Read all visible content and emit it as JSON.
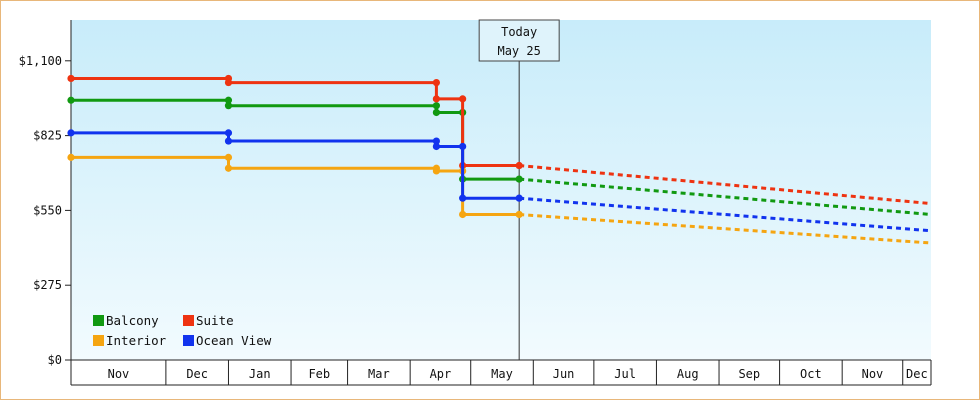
{
  "chart_data": {
    "type": "line",
    "ylim": [
      0,
      1250
    ],
    "y_ticks": [
      {
        "value": 0,
        "label": "$0"
      },
      {
        "value": 275,
        "label": "$275"
      },
      {
        "value": 550,
        "label": "$550"
      },
      {
        "value": 825,
        "label": "$825"
      },
      {
        "value": 1100,
        "label": "$1,100"
      }
    ],
    "x_months": [
      {
        "label": "Nov",
        "start": "2014-10-15",
        "end": "2014-11-30"
      },
      {
        "label": "Dec",
        "start": "2014-12-01",
        "end": "2014-12-31"
      },
      {
        "label": "Jan",
        "start": "2015-01-01",
        "end": "2015-01-31"
      },
      {
        "label": "Feb",
        "start": "2015-02-01",
        "end": "2015-02-28"
      },
      {
        "label": "Mar",
        "start": "2015-03-01",
        "end": "2015-03-31"
      },
      {
        "label": "Apr",
        "start": "2015-04-01",
        "end": "2015-04-30"
      },
      {
        "label": "May",
        "start": "2015-05-01",
        "end": "2015-05-31"
      },
      {
        "label": "Jun",
        "start": "2015-06-01",
        "end": "2015-06-30"
      },
      {
        "label": "Jul",
        "start": "2015-07-01",
        "end": "2015-07-31"
      },
      {
        "label": "Aug",
        "start": "2015-08-01",
        "end": "2015-08-31"
      },
      {
        "label": "Sep",
        "start": "2015-09-01",
        "end": "2015-09-30"
      },
      {
        "label": "Oct",
        "start": "2015-10-01",
        "end": "2015-10-31"
      },
      {
        "label": "Nov",
        "start": "2015-11-01",
        "end": "2015-11-30"
      },
      {
        "label": "Dec",
        "start": "2015-12-01",
        "end": "2015-12-15"
      }
    ],
    "x_start": "2014-10-15",
    "x_end": "2015-12-15",
    "today_marker": {
      "date": "2015-05-25",
      "line1": "Today",
      "line2": "May 25"
    },
    "grid": false,
    "legend_position": "bottom-left",
    "series": [
      {
        "name": "Balcony",
        "color": "#119911",
        "points": [
          [
            "2014-10-15",
            955
          ],
          [
            "2015-01-01",
            955
          ],
          [
            "2015-01-01",
            935
          ],
          [
            "2015-04-14",
            935
          ],
          [
            "2015-04-14",
            910
          ],
          [
            "2015-04-27",
            910
          ],
          [
            "2015-04-27",
            665
          ],
          [
            "2015-05-25",
            665
          ]
        ],
        "forecast": [
          [
            "2015-05-25",
            665
          ],
          [
            "2015-12-15",
            535
          ]
        ]
      },
      {
        "name": "Suite",
        "color": "#ee3311",
        "points": [
          [
            "2014-10-15",
            1035
          ],
          [
            "2015-01-01",
            1035
          ],
          [
            "2015-01-01",
            1020
          ],
          [
            "2015-04-14",
            1020
          ],
          [
            "2015-04-14",
            960
          ],
          [
            "2015-04-27",
            960
          ],
          [
            "2015-04-27",
            715
          ],
          [
            "2015-05-25",
            715
          ]
        ],
        "forecast": [
          [
            "2015-05-25",
            715
          ],
          [
            "2015-12-15",
            575
          ]
        ]
      },
      {
        "name": "Interior",
        "color": "#f5a511",
        "points": [
          [
            "2014-10-15",
            745
          ],
          [
            "2015-01-01",
            745
          ],
          [
            "2015-01-01",
            705
          ],
          [
            "2015-04-14",
            705
          ],
          [
            "2015-04-14",
            695
          ],
          [
            "2015-04-27",
            695
          ],
          [
            "2015-04-27",
            535
          ],
          [
            "2015-05-25",
            535
          ]
        ],
        "forecast": [
          [
            "2015-05-25",
            535
          ],
          [
            "2015-12-15",
            430
          ]
        ]
      },
      {
        "name": "Ocean View",
        "color": "#1133ee",
        "points": [
          [
            "2014-10-15",
            835
          ],
          [
            "2015-01-01",
            835
          ],
          [
            "2015-01-01",
            805
          ],
          [
            "2015-04-14",
            805
          ],
          [
            "2015-04-14",
            785
          ],
          [
            "2015-04-27",
            785
          ],
          [
            "2015-04-27",
            595
          ],
          [
            "2015-05-25",
            595
          ]
        ],
        "forecast": [
          [
            "2015-05-25",
            595
          ],
          [
            "2015-12-15",
            475
          ]
        ]
      }
    ]
  }
}
